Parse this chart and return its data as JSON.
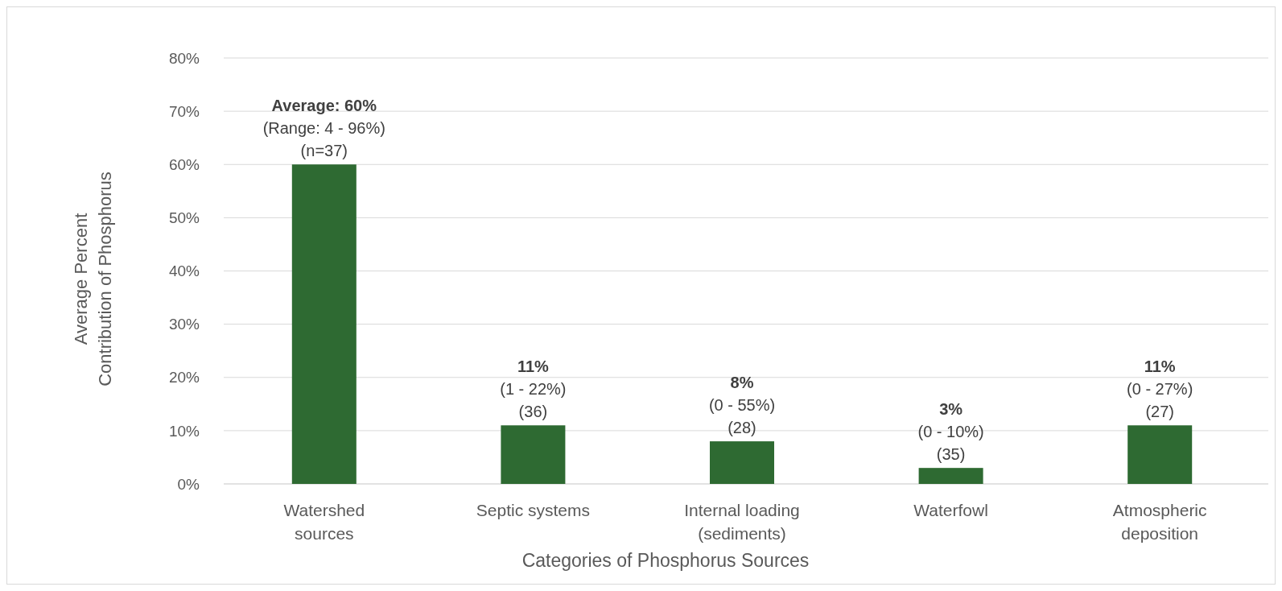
{
  "chart_data": {
    "type": "bar",
    "xlabel": "Categories of Phosphorus Sources",
    "ylabel": "Average Percent\nContribution of Phosphorus",
    "categories": [
      "Watershed sources",
      "Septic systems",
      "Internal loading (sediments)",
      "Waterfowl",
      "Atmospheric deposition"
    ],
    "values": [
      60,
      11,
      8,
      3,
      11
    ],
    "color": "#2e6a32",
    "value_labels": [
      "Average: 60%\n(Range: 4 - 96%)\n(n=37)",
      "11%\n(1 - 22%)\n(36)",
      "8%\n(0 - 55%)\n(28)",
      "3%\n(0 - 10%)\n(35)",
      "11%\n(0 - 27%)\n(27)"
    ],
    "ylim": [
      0,
      80
    ],
    "yticks": [
      {
        "value": 0,
        "label": "0%"
      },
      {
        "value": 10,
        "label": "10%"
      },
      {
        "value": 20,
        "label": "20%"
      },
      {
        "value": 30,
        "label": "30%"
      },
      {
        "value": 40,
        "label": "40%"
      },
      {
        "value": 50,
        "label": "50%"
      },
      {
        "value": 60,
        "label": "60%"
      },
      {
        "value": 70,
        "label": "70%"
      },
      {
        "value": 80,
        "label": "80%"
      }
    ],
    "grid": "y"
  }
}
